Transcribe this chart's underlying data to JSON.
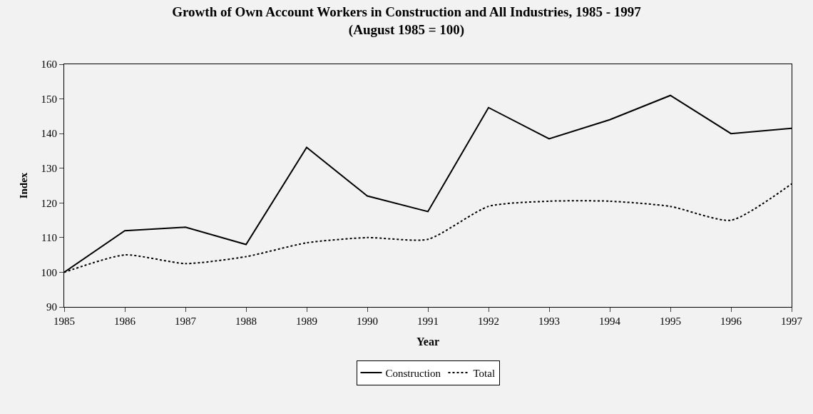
{
  "chart_data": {
    "type": "line",
    "title": "Growth of Own Account Workers in Construction and All Industries, 1985 - 1997",
    "subtitle": "(August 1985 = 100)",
    "xlabel": "Year",
    "ylabel": "Index",
    "categories": [
      "1985",
      "1986",
      "1987",
      "1988",
      "1989",
      "1990",
      "1991",
      "1992",
      "1993",
      "1994",
      "1995",
      "1996",
      "1997"
    ],
    "series": [
      {
        "name": "Construction",
        "color": "#000000",
        "line_style": "solid",
        "values": [
          100,
          112,
          113,
          108,
          136,
          122,
          117.5,
          147.5,
          138.5,
          144,
          151,
          140,
          141.5
        ]
      },
      {
        "name": "Total",
        "color": "#000000",
        "line_style": "dotted",
        "values": [
          100,
          105,
          102.5,
          104.5,
          108.5,
          110,
          109.5,
          119,
          120.5,
          120.5,
          119,
          115,
          125.5
        ]
      }
    ],
    "ylim": [
      90,
      160
    ],
    "yticks": [
      90,
      100,
      110,
      120,
      130,
      140,
      150,
      160
    ],
    "grid": false,
    "legend": "bottom",
    "marker": "none"
  }
}
